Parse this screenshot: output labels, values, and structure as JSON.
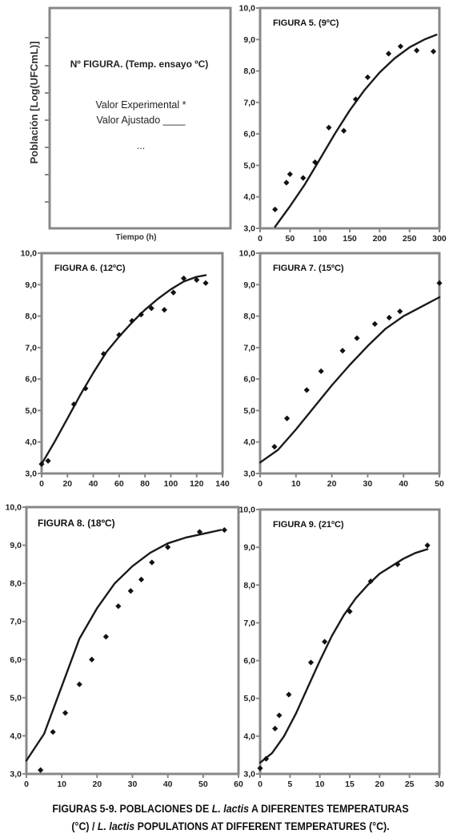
{
  "legend_panel": {
    "ylabel": "Población [Log(UFCmL)]",
    "xlabel": "Tiempo (h)",
    "title": "Nº FIGURA.  (Temp. ensayo ºC)",
    "line1": "Valor Experimental *",
    "line2": "Valor Ajustado ____",
    "line3": "..."
  },
  "caption": {
    "l1a": "FIGURAS 5-9. POBLACIONES DE ",
    "l1b": "L. lactis",
    "l1c": " A DIFERENTES TEMPERATURAS",
    "l2a": "(°C) / ",
    "l2b": "L. lactis",
    "l2c": " POPULATIONS AT DIFFERENT TEMPERATURES (°C)."
  },
  "chart_data": [
    {
      "type": "scatter",
      "title": "FIGURA 5.  (9ºC)",
      "xlim": [
        0,
        300
      ],
      "ylim": [
        3,
        10
      ],
      "xticks": [
        "0",
        "50",
        "100",
        "150",
        "200",
        "250",
        "300"
      ],
      "yticks": [
        "3,0",
        "4,0",
        "5,0",
        "6,0",
        "7,0",
        "8,0",
        "9,0",
        "10,0"
      ],
      "series": [
        {
          "kind": "points",
          "x": [
            25,
            44,
            50,
            72,
            92,
            115,
            140,
            160,
            180,
            215,
            235,
            262,
            290
          ],
          "y": [
            3.6,
            4.45,
            4.72,
            4.6,
            5.1,
            6.2,
            6.1,
            7.1,
            7.8,
            8.55,
            8.78,
            8.65,
            8.62
          ]
        },
        {
          "kind": "line",
          "x": [
            25,
            50,
            75,
            100,
            125,
            150,
            175,
            200,
            225,
            250,
            275,
            295
          ],
          "y": [
            3.05,
            3.7,
            4.4,
            5.2,
            6.0,
            6.75,
            7.4,
            7.95,
            8.4,
            8.75,
            9.0,
            9.15
          ]
        }
      ]
    },
    {
      "type": "scatter",
      "title": "FIGURA 6. (12ºC)",
      "xlim": [
        0,
        140
      ],
      "ylim": [
        3,
        10
      ],
      "xticks": [
        "0",
        "20",
        "40",
        "60",
        "80",
        "100",
        "120",
        "140"
      ],
      "yticks": [
        "3,0",
        "4,0",
        "5,0",
        "6,0",
        "7,0",
        "8,0",
        "9,0",
        "10,0"
      ],
      "series": [
        {
          "kind": "points",
          "x": [
            0,
            5,
            25,
            34,
            48,
            60,
            70,
            77,
            85,
            95,
            102,
            110,
            120,
            127
          ],
          "y": [
            3.3,
            3.4,
            5.2,
            5.7,
            6.8,
            7.4,
            7.85,
            8.05,
            8.25,
            8.2,
            8.75,
            9.2,
            9.15,
            9.05
          ]
        },
        {
          "kind": "line",
          "x": [
            0,
            10,
            20,
            30,
            40,
            50,
            60,
            70,
            80,
            90,
            100,
            110,
            120,
            127
          ],
          "y": [
            3.3,
            4.0,
            4.75,
            5.5,
            6.2,
            6.85,
            7.35,
            7.8,
            8.2,
            8.55,
            8.85,
            9.1,
            9.25,
            9.3
          ]
        }
      ]
    },
    {
      "type": "scatter",
      "title": "FIGURA 7. (15ºC)",
      "xlim": [
        0,
        50
      ],
      "ylim": [
        3,
        10
      ],
      "xticks": [
        "0",
        "10",
        "20",
        "30",
        "40",
        "50"
      ],
      "yticks": [
        "3,0",
        "4,0",
        "5,0",
        "6,0",
        "7,0",
        "8,0",
        "9,0",
        "10,0"
      ],
      "series": [
        {
          "kind": "points",
          "x": [
            4,
            7.5,
            13,
            17,
            23,
            27,
            32,
            36,
            39,
            50
          ],
          "y": [
            3.85,
            4.75,
            5.65,
            6.25,
            6.9,
            7.3,
            7.75,
            7.95,
            8.15,
            9.05
          ]
        },
        {
          "kind": "line",
          "x": [
            0,
            5,
            10,
            15,
            20,
            25,
            30,
            35,
            40,
            45,
            50
          ],
          "y": [
            3.35,
            3.75,
            4.4,
            5.1,
            5.8,
            6.45,
            7.05,
            7.6,
            8.0,
            8.3,
            8.6
          ]
        }
      ]
    },
    {
      "type": "scatter",
      "title": "FIGURA 8. (18ºC)",
      "xlim": [
        0,
        60
      ],
      "ylim": [
        3,
        10
      ],
      "xticks": [
        "0",
        "10",
        "20",
        "30",
        "40",
        "50",
        "60"
      ],
      "yticks": [
        "3,0",
        "4,0",
        "5,0",
        "6,0",
        "7,0",
        "8,0",
        "9,0",
        "10,0"
      ],
      "series": [
        {
          "kind": "points",
          "x": [
            4,
            7.5,
            11,
            15,
            18.5,
            22.5,
            26,
            29.5,
            32.5,
            35.5,
            40,
            49,
            56
          ],
          "y": [
            3.1,
            4.1,
            4.6,
            5.35,
            6.0,
            6.6,
            7.4,
            7.8,
            8.1,
            8.55,
            8.95,
            9.35,
            9.4
          ]
        },
        {
          "kind": "line",
          "x": [
            0,
            5,
            10,
            15,
            20,
            25,
            30,
            35,
            40,
            45,
            50,
            55
          ],
          "y": [
            3.35,
            4.05,
            5.3,
            6.55,
            7.35,
            8.0,
            8.45,
            8.8,
            9.05,
            9.2,
            9.3,
            9.4
          ]
        }
      ]
    },
    {
      "type": "scatter",
      "title": "FIGURA 9. (21ºC)",
      "xlim": [
        0,
        30
      ],
      "ylim": [
        3,
        10
      ],
      "xticks": [
        "0",
        "5",
        "10",
        "15",
        "20",
        "25",
        "30"
      ],
      "yticks": [
        "3,0",
        "4,0",
        "5,0",
        "6,0",
        "7,0",
        "8,0",
        "9,0",
        "10,0"
      ],
      "series": [
        {
          "kind": "points",
          "x": [
            0,
            1,
            2.5,
            3.2,
            4.8,
            8.5,
            10.8,
            15,
            18.5,
            23,
            28
          ],
          "y": [
            3.15,
            3.4,
            4.2,
            4.55,
            5.1,
            5.95,
            6.5,
            7.3,
            8.1,
            8.55,
            9.05
          ]
        },
        {
          "kind": "line",
          "x": [
            0,
            2,
            4,
            6,
            8,
            10,
            12,
            14,
            16,
            18,
            20,
            22,
            24,
            26,
            28
          ],
          "y": [
            3.3,
            3.55,
            4.0,
            4.6,
            5.3,
            6.0,
            6.65,
            7.2,
            7.65,
            8.0,
            8.3,
            8.5,
            8.7,
            8.85,
            8.95
          ]
        }
      ]
    }
  ]
}
